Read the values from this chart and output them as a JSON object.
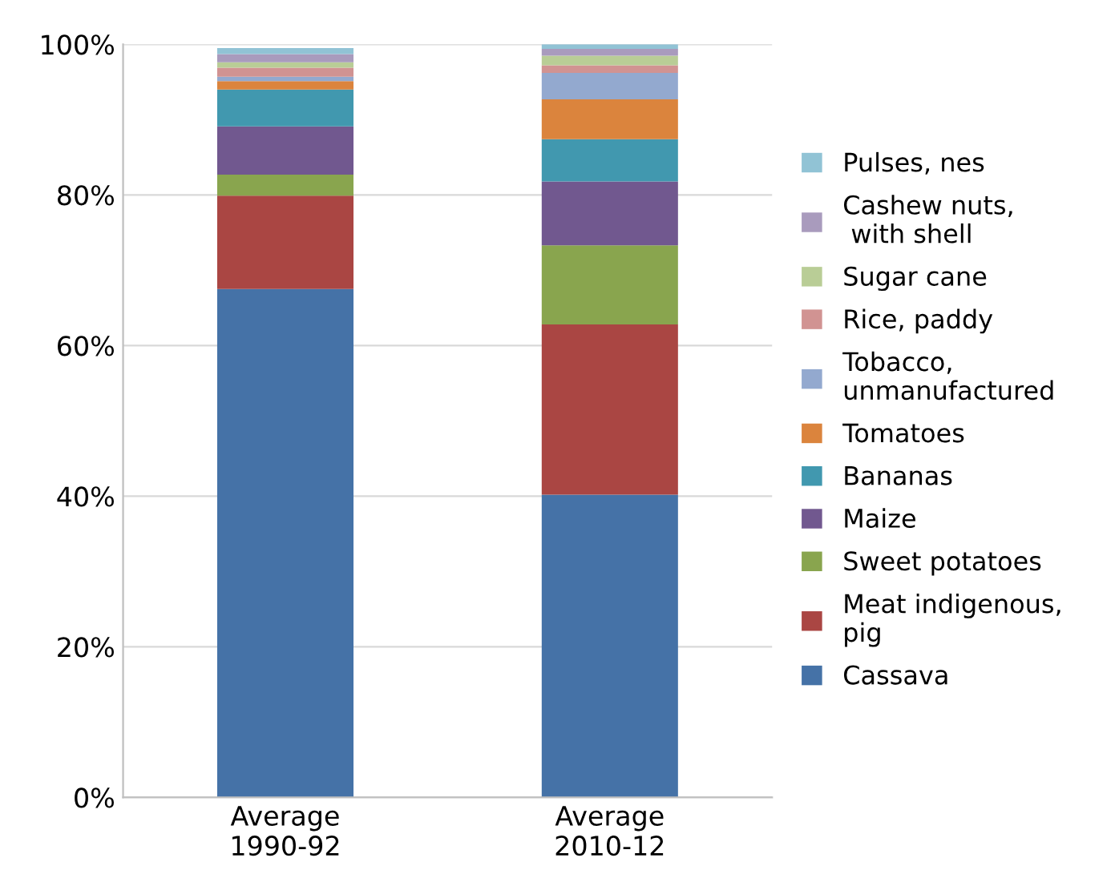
{
  "chart_data": {
    "type": "bar",
    "stacked": true,
    "categories": [
      "Average\n1990-92",
      "Average\n2010-12"
    ],
    "series": [
      {
        "name": "Cassava",
        "color": "#4572a7",
        "values": [
          67.5,
          40.2
        ]
      },
      {
        "name": "Meat indigenous,\npig",
        "color": "#aa4643",
        "values": [
          12.4,
          22.6
        ]
      },
      {
        "name": "Sweet potatoes",
        "color": "#89a54e",
        "values": [
          2.8,
          10.5
        ]
      },
      {
        "name": "Maize",
        "color": "#71588f",
        "values": [
          6.4,
          8.5
        ]
      },
      {
        "name": "Bananas",
        "color": "#4198af",
        "values": [
          4.9,
          5.6
        ]
      },
      {
        "name": "Tomatoes",
        "color": "#db843d",
        "values": [
          1.1,
          5.3
        ]
      },
      {
        "name": "Tobacco,\nunmanufactured",
        "color": "#93a9cf",
        "values": [
          0.6,
          3.5
        ]
      },
      {
        "name": "Rice, paddy",
        "color": "#d19392",
        "values": [
          1.2,
          1.0
        ]
      },
      {
        "name": "Sugar cane",
        "color": "#b9cd96",
        "values": [
          0.7,
          1.3
        ]
      },
      {
        "name": "Cashew nuts,\n with shell",
        "color": "#a99bbd",
        "values": [
          1.1,
          0.9
        ]
      },
      {
        "name": "Pulses, nes",
        "color": "#91c3d5",
        "values": [
          0.8,
          0.6
        ]
      }
    ],
    "ylim": [
      0,
      100
    ],
    "yticks": [
      {
        "value": 0,
        "label": "0%"
      },
      {
        "value": 20,
        "label": "20%"
      },
      {
        "value": 40,
        "label": "40%"
      },
      {
        "value": 60,
        "label": "60%"
      },
      {
        "value": 80,
        "label": "80%"
      },
      {
        "value": 100,
        "label": "100%"
      }
    ],
    "grid": "y",
    "legend": "right"
  }
}
